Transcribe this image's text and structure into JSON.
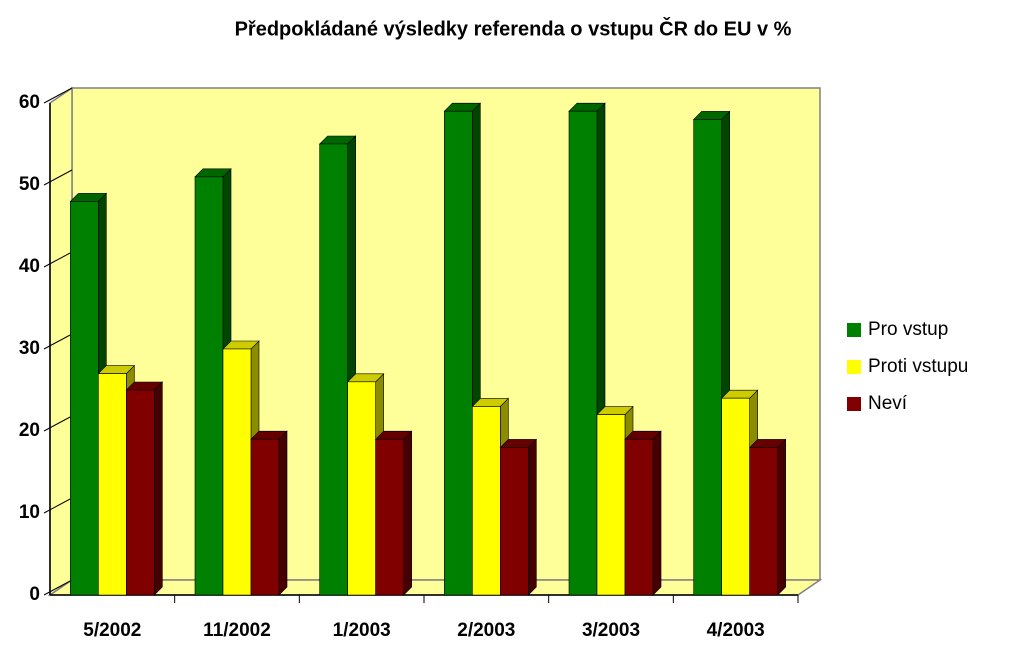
{
  "chart_data": {
    "type": "bar3d",
    "title": "Předpokládané výsledky referenda o vstupu ČR do EU v %",
    "categories": [
      "5/2002",
      "11/2002",
      "1/2003",
      "2/2003",
      "3/2003",
      "4/2003"
    ],
    "series": [
      {
        "name": "Pro vstup",
        "color": "#008000",
        "values": [
          48,
          51,
          55,
          59,
          59,
          58
        ]
      },
      {
        "name": "Proti vstupu",
        "color": "#ffff00",
        "values": [
          27,
          30,
          26,
          23,
          22,
          24
        ]
      },
      {
        "name": "Neví",
        "color": "#800000",
        "values": [
          25,
          19,
          19,
          18,
          19,
          18
        ]
      }
    ],
    "ylim": [
      0,
      60
    ],
    "yticks": [
      0,
      10,
      20,
      30,
      40,
      50,
      60
    ]
  }
}
